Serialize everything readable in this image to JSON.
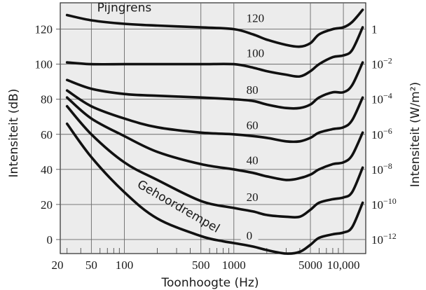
{
  "chart_data": {
    "type": "line",
    "title": "",
    "xlabel": "Toonhoogte (Hz)",
    "ylabel": "Intensiteit  (dB)",
    "y2label": "Intensiteit  (W/m²)",
    "xscale": "log",
    "xlim": [
      26,
      16000
    ],
    "ylim": [
      -8,
      135
    ],
    "grid": true,
    "x_ticks": [
      {
        "value": 20,
        "label": "20"
      },
      {
        "value": 50,
        "label": "50"
      },
      {
        "value": 100,
        "label": "100"
      },
      {
        "value": 500,
        "label": "500"
      },
      {
        "value": 1000,
        "label": "1000"
      },
      {
        "value": 5000,
        "label": "5000"
      },
      {
        "value": 10000,
        "label": "10,000"
      }
    ],
    "x_grid": [
      50,
      100,
      500,
      1000,
      5000,
      10000
    ],
    "x_minor_ticks": [
      30,
      40,
      60,
      70,
      80,
      90,
      200,
      300,
      400,
      600,
      700,
      800,
      900,
      2000,
      3000,
      4000,
      6000,
      7000,
      8000,
      9000
    ],
    "y_ticks": [
      {
        "value": 0,
        "label": "0"
      },
      {
        "value": 20,
        "label": "20"
      },
      {
        "value": 40,
        "label": "40"
      },
      {
        "value": 60,
        "label": "60"
      },
      {
        "value": 80,
        "label": "80"
      },
      {
        "value": 100,
        "label": "100"
      },
      {
        "value": 120,
        "label": "120"
      }
    ],
    "y2_ticks": [
      {
        "value": 120,
        "base": "1",
        "exp": ""
      },
      {
        "value": 100,
        "base": "10",
        "exp": "−2"
      },
      {
        "value": 80,
        "base": "10",
        "exp": "−4"
      },
      {
        "value": 60,
        "base": "10",
        "exp": "−6"
      },
      {
        "value": 40,
        "base": "10",
        "exp": "−8"
      },
      {
        "value": 20,
        "base": "10",
        "exp": "−10"
      },
      {
        "value": 0,
        "base": "10",
        "exp": "−12"
      }
    ],
    "series": [
      {
        "name": "0",
        "label_at": [
          1300,
          0
        ],
        "points": [
          [
            30,
            66
          ],
          [
            50,
            47
          ],
          [
            100,
            27
          ],
          [
            200,
            12
          ],
          [
            500,
            2
          ],
          [
            800,
            -1
          ],
          [
            1000,
            -2
          ],
          [
            1500,
            -4
          ],
          [
            2000,
            -6
          ],
          [
            3000,
            -8
          ],
          [
            4000,
            -7
          ],
          [
            5000,
            -3
          ],
          [
            6000,
            1
          ],
          [
            8000,
            3
          ],
          [
            10000,
            4
          ],
          [
            12000,
            7
          ],
          [
            15000,
            21
          ]
        ]
      },
      {
        "name": "20",
        "label_at": [
          1300,
          22
        ],
        "points": [
          [
            30,
            76
          ],
          [
            50,
            60
          ],
          [
            100,
            44
          ],
          [
            200,
            34
          ],
          [
            500,
            22
          ],
          [
            1000,
            18
          ],
          [
            1500,
            16
          ],
          [
            2000,
            14
          ],
          [
            3000,
            13
          ],
          [
            4000,
            13
          ],
          [
            5000,
            17
          ],
          [
            6000,
            21
          ],
          [
            8000,
            23
          ],
          [
            10000,
            24
          ],
          [
            12000,
            27
          ],
          [
            15000,
            41
          ]
        ]
      },
      {
        "name": "40",
        "label_at": [
          1300,
          43
        ],
        "points": [
          [
            30,
            81
          ],
          [
            50,
            69
          ],
          [
            100,
            59
          ],
          [
            200,
            50
          ],
          [
            500,
            43
          ],
          [
            1000,
            40
          ],
          [
            1500,
            38
          ],
          [
            2000,
            36
          ],
          [
            3000,
            34
          ],
          [
            4000,
            35
          ],
          [
            5000,
            37
          ],
          [
            6000,
            40
          ],
          [
            8000,
            43
          ],
          [
            10000,
            44
          ],
          [
            12000,
            48
          ],
          [
            15000,
            61
          ]
        ]
      },
      {
        "name": "60",
        "label_at": [
          1300,
          63
        ],
        "points": [
          [
            30,
            85
          ],
          [
            50,
            76
          ],
          [
            100,
            69
          ],
          [
            200,
            64
          ],
          [
            500,
            61
          ],
          [
            1000,
            60
          ],
          [
            1500,
            59
          ],
          [
            2000,
            58
          ],
          [
            3000,
            56
          ],
          [
            4000,
            56
          ],
          [
            5000,
            58
          ],
          [
            6000,
            61
          ],
          [
            8000,
            63
          ],
          [
            10000,
            64
          ],
          [
            12000,
            68
          ],
          [
            15000,
            81
          ]
        ]
      },
      {
        "name": "80",
        "label_at": [
          1300,
          83
        ],
        "points": [
          [
            30,
            91
          ],
          [
            50,
            86
          ],
          [
            100,
            83
          ],
          [
            200,
            82
          ],
          [
            500,
            81
          ],
          [
            1000,
            80
          ],
          [
            1500,
            79
          ],
          [
            2000,
            77
          ],
          [
            3000,
            75
          ],
          [
            4000,
            75
          ],
          [
            5000,
            77
          ],
          [
            6000,
            81
          ],
          [
            8000,
            84
          ],
          [
            10000,
            84
          ],
          [
            12000,
            88
          ],
          [
            15000,
            101
          ]
        ]
      },
      {
        "name": "100",
        "label_at": [
          1300,
          104
        ],
        "points": [
          [
            30,
            101
          ],
          [
            50,
            100
          ],
          [
            100,
            100
          ],
          [
            200,
            100
          ],
          [
            500,
            100
          ],
          [
            1000,
            100
          ],
          [
            1500,
            98
          ],
          [
            2000,
            96
          ],
          [
            3000,
            94
          ],
          [
            4000,
            93
          ],
          [
            5000,
            96
          ],
          [
            6000,
            100
          ],
          [
            8000,
            104
          ],
          [
            10000,
            105
          ],
          [
            12000,
            108
          ],
          [
            15000,
            121
          ]
        ]
      },
      {
        "name": "120",
        "label_at": [
          1300,
          124
        ],
        "points": [
          [
            30,
            128
          ],
          [
            50,
            125
          ],
          [
            100,
            123
          ],
          [
            200,
            122
          ],
          [
            500,
            121
          ],
          [
            1000,
            120
          ],
          [
            1500,
            117
          ],
          [
            2000,
            114
          ],
          [
            3000,
            111
          ],
          [
            4000,
            110
          ],
          [
            5000,
            112
          ],
          [
            6000,
            117
          ],
          [
            8000,
            120
          ],
          [
            10000,
            121
          ],
          [
            12000,
            124
          ],
          [
            15000,
            131
          ]
        ]
      }
    ],
    "annotations": [
      {
        "text": "Pijngrens",
        "at": [
          100,
          130
        ]
      },
      {
        "text": "Gehoordrempel",
        "at": [
          300,
          17
        ],
        "rotate": 30
      }
    ]
  }
}
